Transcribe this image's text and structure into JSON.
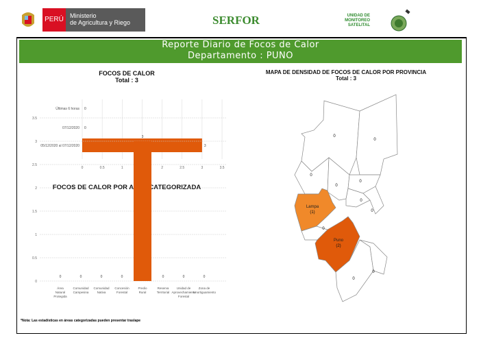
{
  "header": {
    "country": "PERÚ",
    "ministry_line1": "Ministerio",
    "ministry_line2": "de Agricultura y Riego",
    "serfor": "SERFOR",
    "unit_line1": "UNIDAD DE",
    "unit_line2": "MONITOREO",
    "unit_line3": "SATELITAL"
  },
  "banner": {
    "title": "Reporte Diario de Focos de Calor",
    "subtitle": "Departamento : PUNO"
  },
  "colors": {
    "banner": "#4f9a2d",
    "bar": "#e05a0a",
    "lampa": "#f0892a",
    "puno": "#e05a0a",
    "peru_red": "#d91023",
    "ministry_gray": "#5a5a5a"
  },
  "chart_data": [
    {
      "type": "bar",
      "orientation": "horizontal",
      "title": "FOCOS DE CALOR",
      "subtitle": "Total : 3",
      "categories": [
        "Últimas 6 horas",
        "07/12/2020",
        "05/12/2020 al 07/12/2020"
      ],
      "values": [
        0,
        0,
        3
      ],
      "xlim": [
        0,
        3.5
      ],
      "ticks": [
        "0",
        "0.5",
        "1",
        "1.5",
        "2",
        "2.5",
        "3",
        "3.5"
      ],
      "grid": true
    },
    {
      "type": "bar",
      "title": "FOCOS DE CALOR POR AREA CATEGORIZADA",
      "categories": [
        "Área Natural Protegida",
        "Comunidad Campesina",
        "Comunidad Nativa",
        "Concesión Forestal",
        "Predio Rural",
        "Reserva Territorial",
        "Unidad de Aprovechamiento Forestal",
        "Zona de Amortiguamiento"
      ],
      "values": [
        0,
        0,
        0,
        0,
        3,
        0,
        0,
        0
      ],
      "ylim": [
        0,
        3.5
      ],
      "ticks": [
        "0",
        "0.5",
        "1",
        "1.5",
        "2",
        "2.5",
        "3",
        "3.5"
      ],
      "grid": true,
      "note": "*Nota: Las estadísticas en áreas categorizadas pueden presentar traslape"
    }
  ],
  "map": {
    "title": "MAPA DE DENSIDAD DE FOCOS DE CALOR POR PROVINCIA",
    "subtitle": "Total : 3",
    "provinces": [
      {
        "name": "",
        "value": "0"
      },
      {
        "name": "",
        "value": "0"
      },
      {
        "name": "",
        "value": "0"
      },
      {
        "name": "",
        "value": "0"
      },
      {
        "name": "",
        "value": "0"
      },
      {
        "name": "",
        "value": "0"
      },
      {
        "name": "",
        "value": "0"
      },
      {
        "name": "Lampa",
        "value": "(1)"
      },
      {
        "name": "Puno",
        "value": "(2)"
      },
      {
        "name": "",
        "value": "0"
      },
      {
        "name": "",
        "value": "0"
      },
      {
        "name": "",
        "value": "0"
      }
    ]
  }
}
